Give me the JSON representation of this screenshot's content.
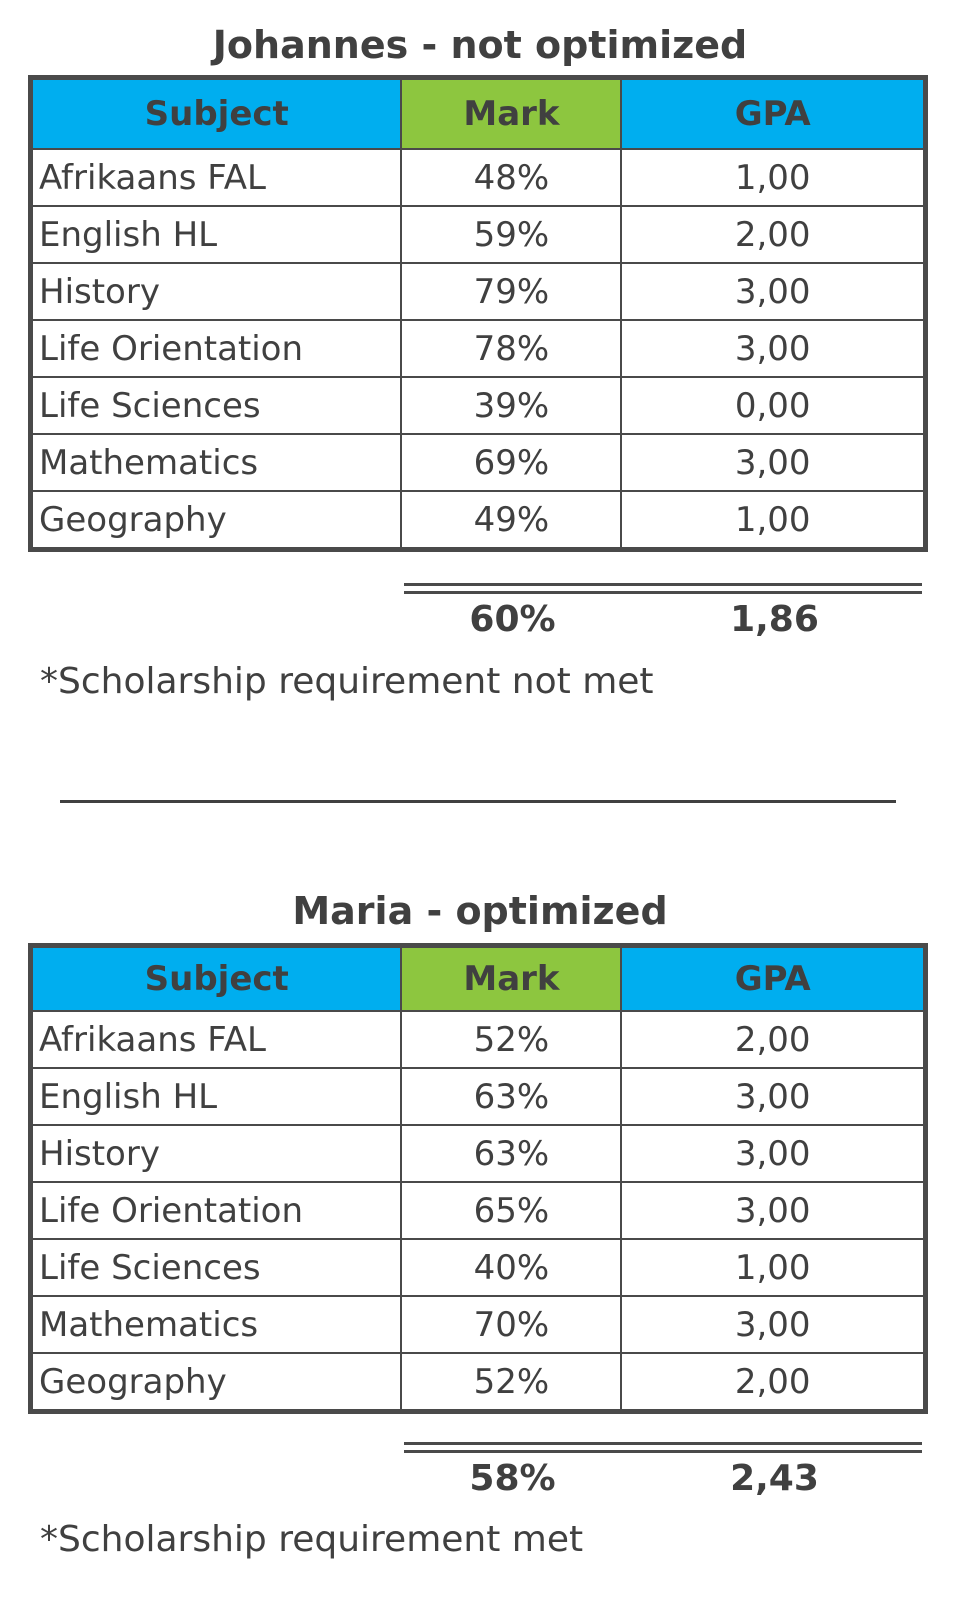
{
  "columns": {
    "subject": "Subject",
    "mark": "Mark",
    "gpa": "GPA"
  },
  "colors": {
    "header_blue": "#00aeef",
    "header_green": "#8dc63f",
    "text": "#404040"
  },
  "johannes": {
    "title": "Johannes - not optimized",
    "rows": [
      {
        "subject": "Afrikaans FAL",
        "mark": "48%",
        "gpa": "1,00"
      },
      {
        "subject": "English HL",
        "mark": "59%",
        "gpa": "2,00"
      },
      {
        "subject": "History",
        "mark": "79%",
        "gpa": "3,00"
      },
      {
        "subject": "Life Orientation",
        "mark": "78%",
        "gpa": "3,00"
      },
      {
        "subject": "Life Sciences",
        "mark": "39%",
        "gpa": "0,00"
      },
      {
        "subject": "Mathematics",
        "mark": "69%",
        "gpa": "3,00"
      },
      {
        "subject": "Geography",
        "mark": "49%",
        "gpa": "1,00"
      }
    ],
    "total_mark": "60%",
    "total_gpa": "1,86",
    "note": "*Scholarship requirement not met"
  },
  "maria": {
    "title": "Maria - optimized",
    "rows": [
      {
        "subject": "Afrikaans FAL",
        "mark": "52%",
        "gpa": "2,00"
      },
      {
        "subject": "English HL",
        "mark": "63%",
        "gpa": "3,00"
      },
      {
        "subject": "History",
        "mark": "63%",
        "gpa": "3,00"
      },
      {
        "subject": "Life Orientation",
        "mark": "65%",
        "gpa": "3,00"
      },
      {
        "subject": "Life Sciences",
        "mark": "40%",
        "gpa": "1,00"
      },
      {
        "subject": "Mathematics",
        "mark": "70%",
        "gpa": "3,00"
      },
      {
        "subject": "Geography",
        "mark": "52%",
        "gpa": "2,00"
      }
    ],
    "total_mark": "58%",
    "total_gpa": "2,43",
    "note": "*Scholarship requirement met"
  }
}
